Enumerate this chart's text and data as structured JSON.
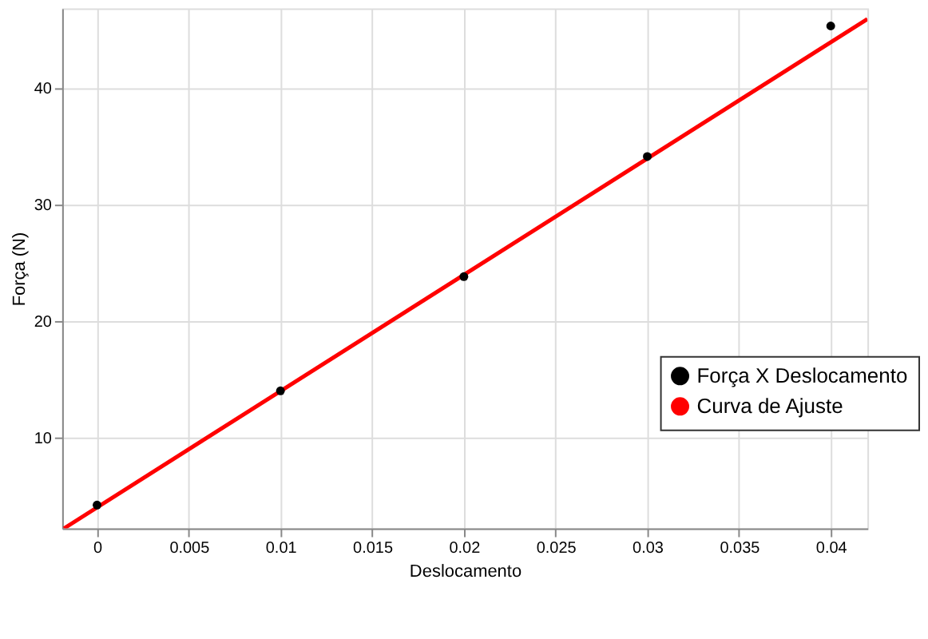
{
  "chart_data": {
    "type": "scatter",
    "xlabel": "Deslocamento",
    "ylabel": "Força (N)",
    "xlim": [
      -0.0019,
      0.042
    ],
    "ylim": [
      2.2,
      46.8
    ],
    "xticks": [
      0,
      0.005,
      0.01,
      0.015,
      0.02,
      0.025,
      0.03,
      0.035,
      0.04
    ],
    "yticks": [
      10,
      20,
      30,
      40
    ],
    "grid": true,
    "legend": "right",
    "series": [
      {
        "name": "Força X Deslocamento",
        "marker": "circle",
        "color": "#000000",
        "x": [
          0,
          0.01,
          0.02,
          0.03,
          0.04
        ],
        "values": [
          4.2,
          14.0,
          23.8,
          34.1,
          45.3
        ]
      },
      {
        "name": "Curva de Ajuste",
        "type": "line",
        "color": "#ff0000",
        "line_style": "solid",
        "x": [
          -0.0018,
          0.042
        ],
        "values": [
          2.2,
          45.9
        ]
      }
    ]
  }
}
